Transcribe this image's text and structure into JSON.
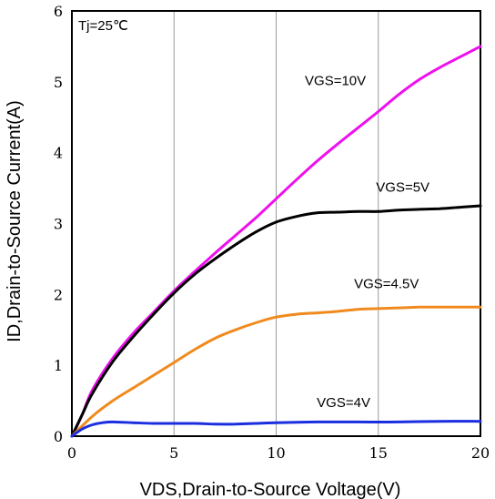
{
  "chart_data": {
    "type": "line",
    "xlabel": "VDS,Drain-to-Source Voltage(V)",
    "ylabel": "ID,Drain-to-Source Current(A)",
    "xlim": [
      0,
      20
    ],
    "ylim": [
      0,
      6
    ],
    "xticks": [
      "0",
      "5",
      "10",
      "15",
      "20"
    ],
    "yticks": [
      "0",
      "1",
      "2",
      "3",
      "4",
      "5",
      "6"
    ],
    "grid": "vertical",
    "annotation": "Tj=25℃",
    "series": [
      {
        "name": "VGS=10V",
        "color": "#ee10ee",
        "x": [
          0,
          0.5,
          1,
          2,
          3,
          4,
          5,
          6,
          7,
          8,
          9,
          10,
          11,
          12,
          13,
          14,
          15,
          16,
          17,
          18,
          19,
          20
        ],
        "y": [
          0,
          0.3,
          0.65,
          1.1,
          1.45,
          1.75,
          2.05,
          2.32,
          2.58,
          2.83,
          3.08,
          3.35,
          3.62,
          3.88,
          4.12,
          4.35,
          4.58,
          4.82,
          5.03,
          5.2,
          5.35,
          5.5
        ]
      },
      {
        "name": "VGS=5V",
        "color": "#000000",
        "x": [
          0,
          0.5,
          1,
          2,
          3,
          4,
          5,
          6,
          7,
          8,
          9,
          10,
          11,
          12,
          13,
          14,
          15,
          16,
          17,
          18,
          19,
          20
        ],
        "y": [
          0,
          0.3,
          0.6,
          1.05,
          1.4,
          1.72,
          2.02,
          2.28,
          2.5,
          2.7,
          2.88,
          3.02,
          3.1,
          3.15,
          3.16,
          3.17,
          3.17,
          3.19,
          3.2,
          3.21,
          3.23,
          3.25
        ]
      },
      {
        "name": "VGS=4.5V",
        "color": "#f08a1e",
        "x": [
          0,
          1,
          2,
          3,
          4,
          5,
          6,
          7,
          8,
          9,
          10,
          11,
          12,
          13,
          14,
          15,
          16,
          17,
          18,
          19,
          20
        ],
        "y": [
          0,
          0.28,
          0.5,
          0.68,
          0.86,
          1.04,
          1.22,
          1.38,
          1.5,
          1.6,
          1.68,
          1.72,
          1.74,
          1.76,
          1.79,
          1.8,
          1.81,
          1.82,
          1.82,
          1.82,
          1.82
        ]
      },
      {
        "name": "VGS=4V",
        "color": "#1a2ee0",
        "x": [
          0,
          0.5,
          1,
          1.5,
          2,
          3,
          4,
          5,
          6,
          7,
          8,
          9,
          10,
          12,
          14,
          16,
          18,
          20
        ],
        "y": [
          0,
          0.1,
          0.16,
          0.19,
          0.2,
          0.19,
          0.18,
          0.18,
          0.18,
          0.17,
          0.17,
          0.18,
          0.19,
          0.2,
          0.2,
          0.2,
          0.21,
          0.21
        ]
      }
    ],
    "series_labels": [
      {
        "text": "VGS=10V",
        "x": 12.9,
        "y": 4.95
      },
      {
        "text": "VGS=5V",
        "x": 16.2,
        "y": 3.45
      },
      {
        "text": "VGS=4.5V",
        "x": 15.4,
        "y": 2.09
      },
      {
        "text": "VGS=4V",
        "x": 13.3,
        "y": 0.41
      }
    ]
  }
}
